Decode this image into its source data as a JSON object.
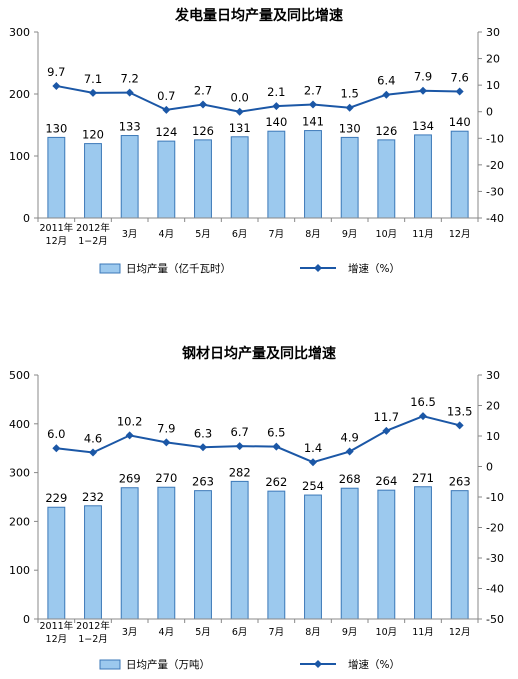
{
  "chart_data": [
    {
      "type": "bar",
      "title": "发电量日均产量及同比增速",
      "categories": [
        [
          "2011年",
          "12月"
        ],
        [
          "2012年",
          "1−2月"
        ],
        [
          "3月"
        ],
        [
          "4月"
        ],
        [
          "5月"
        ],
        [
          "6月"
        ],
        [
          "7月"
        ],
        [
          "8月"
        ],
        [
          "9月"
        ],
        [
          "10月"
        ],
        [
          "11月"
        ],
        [
          "12月"
        ]
      ],
      "series": [
        {
          "name": "日均产量（亿千瓦时）",
          "type": "bar",
          "axis": "left",
          "values": [
            130,
            120,
            133,
            124,
            126,
            131,
            140,
            141,
            130,
            126,
            134,
            140
          ],
          "labels": [
            "130",
            "120",
            "133",
            "124",
            "126",
            "131",
            "140",
            "141",
            "130",
            "126",
            "134",
            "140"
          ]
        },
        {
          "name": "增速（%）",
          "type": "line",
          "axis": "right",
          "values": [
            9.7,
            7.1,
            7.2,
            0.7,
            2.7,
            0.0,
            2.1,
            2.7,
            1.5,
            6.4,
            7.9,
            7.6
          ],
          "labels": [
            "9.7",
            "7.1",
            "7.2",
            "0.7",
            "2.7",
            "0.0",
            "2.1",
            "2.7",
            "1.5",
            "6.4",
            "7.9",
            "7.6"
          ]
        }
      ],
      "y_left": {
        "range": [
          0,
          300
        ],
        "ticks": [
          0,
          100,
          200,
          300
        ]
      },
      "y_right": {
        "range": [
          -40,
          30
        ],
        "ticks": [
          30,
          20,
          10,
          0,
          -10,
          -20,
          -30,
          -40
        ]
      },
      "grid": false,
      "legend_position": "bottom",
      "colors": {
        "bar_fill": "#9cc9ee",
        "bar_stroke": "#3b78b8",
        "line": "#1b57a6"
      }
    },
    {
      "type": "bar",
      "title": "钢材日均产量及同比增速",
      "categories": [
        [
          "2011年",
          "12月"
        ],
        [
          "2012年",
          "1−2月"
        ],
        [
          "3月"
        ],
        [
          "4月"
        ],
        [
          "5月"
        ],
        [
          "6月"
        ],
        [
          "7月"
        ],
        [
          "8月"
        ],
        [
          "9月"
        ],
        [
          "10月"
        ],
        [
          "11月"
        ],
        [
          "12月"
        ]
      ],
      "series": [
        {
          "name": "日均产量（万吨）",
          "type": "bar",
          "axis": "left",
          "values": [
            229,
            232,
            269,
            270,
            263,
            282,
            262,
            254,
            268,
            264,
            271,
            263
          ],
          "labels": [
            "229",
            "232",
            "269",
            "270",
            "263",
            "282",
            "262",
            "254",
            "268",
            "264",
            "271",
            "263"
          ]
        },
        {
          "name": "增速（%）",
          "type": "line",
          "axis": "right",
          "values": [
            6.0,
            4.6,
            10.2,
            7.9,
            6.3,
            6.7,
            6.5,
            1.4,
            4.9,
            11.7,
            16.5,
            13.5
          ],
          "labels": [
            "6.0",
            "4.6",
            "10.2",
            "7.9",
            "6.3",
            "6.7",
            "6.5",
            "1.4",
            "4.9",
            "11.7",
            "16.5",
            "13.5"
          ]
        }
      ],
      "y_left": {
        "range": [
          0,
          500
        ],
        "ticks": [
          0,
          100,
          200,
          300,
          400,
          500
        ]
      },
      "y_right": {
        "range": [
          -50,
          30
        ],
        "ticks": [
          30,
          20,
          10,
          0,
          -10,
          -20,
          -30,
          -40,
          -50
        ]
      },
      "grid": false,
      "legend_position": "bottom",
      "colors": {
        "bar_fill": "#9cc9ee",
        "bar_stroke": "#3b78b8",
        "line": "#1b57a6"
      }
    }
  ]
}
